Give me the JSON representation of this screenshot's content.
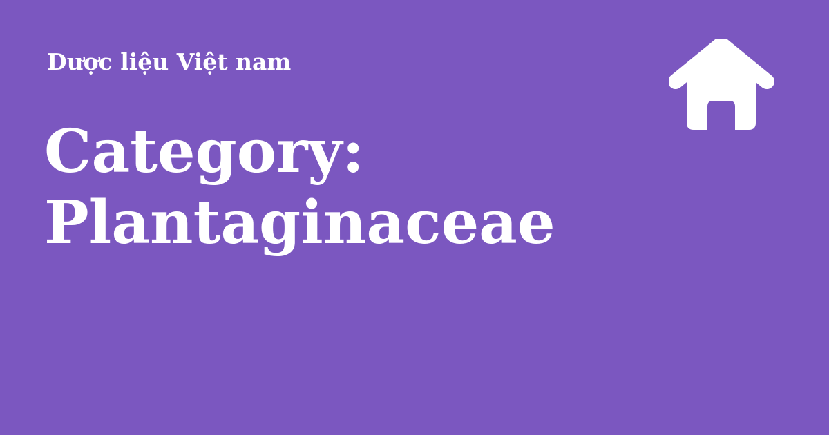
{
  "header": {
    "site_name": "Dược liệu Việt nam",
    "home_icon": "home-icon"
  },
  "main": {
    "title_line1": "Category:",
    "title_line2": "Plantaginaceae"
  },
  "colors": {
    "background": "#7b57c0",
    "text": "#ffffff"
  }
}
